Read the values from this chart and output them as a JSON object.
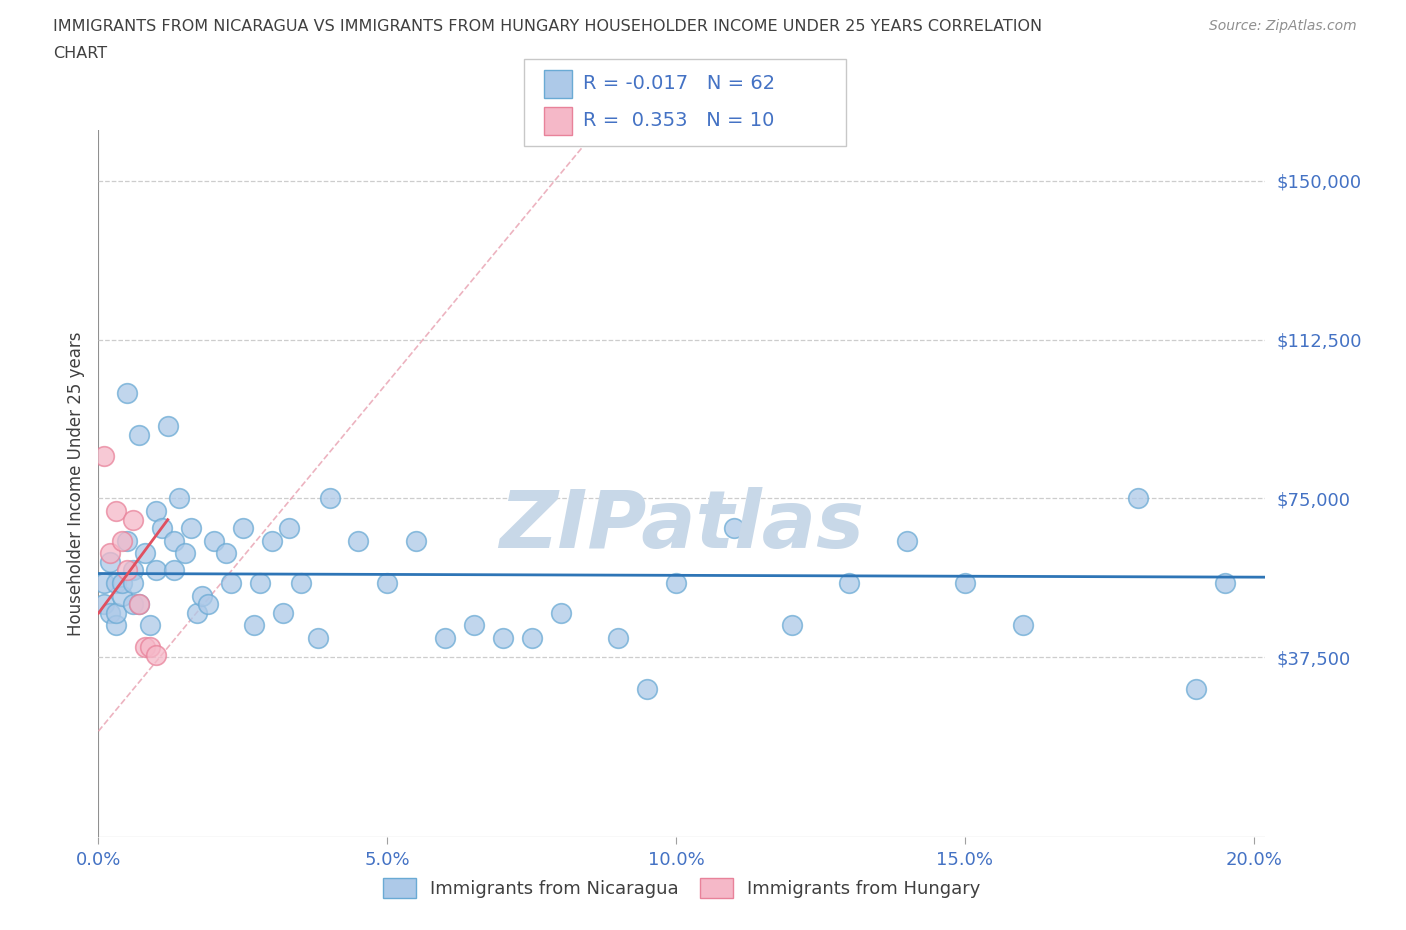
{
  "title_line1": "IMMIGRANTS FROM NICARAGUA VS IMMIGRANTS FROM HUNGARY HOUSEHOLDER INCOME UNDER 25 YEARS CORRELATION",
  "title_line2": "CHART",
  "source_text": "Source: ZipAtlas.com",
  "ylabel": "Householder Income Under 25 years",
  "xlim": [
    0.0,
    0.202
  ],
  "ylim": [
    -5000,
    162000
  ],
  "yticks_major": [
    0,
    37500,
    75000,
    112500,
    150000
  ],
  "ytick_labels_right": [
    "",
    "$37,500",
    "$75,000",
    "$112,500",
    "$150,000"
  ],
  "xticks": [
    0.0,
    0.05,
    0.1,
    0.15,
    0.2
  ],
  "xtick_labels": [
    "0.0%",
    "5.0%",
    "10.0%",
    "15.0%",
    "20.0%"
  ],
  "nicaragua_fill": "#adc9e8",
  "nicaragua_edge": "#6aaad4",
  "hungary_fill": "#f5b8c8",
  "hungary_edge": "#e8829a",
  "trend_nicaragua_color": "#2e75b6",
  "trend_hungary_color": "#e05060",
  "trend_dashed_color": "#e8a0b0",
  "R_nicaragua": -0.017,
  "N_nicaragua": 62,
  "R_hungary": 0.353,
  "N_hungary": 10,
  "watermark_text": "ZIPatlas",
  "watermark_color": "#c8d8e8",
  "background_color": "#ffffff",
  "grid_color": "#c8c8c8",
  "axis_label_color": "#4472c4",
  "title_color": "#404040",
  "source_color": "#909090",
  "legend_text_color": "#404040",
  "nicaragua_x": [
    0.001,
    0.001,
    0.002,
    0.002,
    0.003,
    0.003,
    0.003,
    0.004,
    0.004,
    0.005,
    0.005,
    0.006,
    0.006,
    0.006,
    0.007,
    0.007,
    0.008,
    0.009,
    0.01,
    0.01,
    0.011,
    0.012,
    0.013,
    0.013,
    0.014,
    0.015,
    0.016,
    0.017,
    0.018,
    0.019,
    0.02,
    0.022,
    0.023,
    0.025,
    0.027,
    0.028,
    0.03,
    0.032,
    0.033,
    0.035,
    0.038,
    0.04,
    0.045,
    0.05,
    0.055,
    0.06,
    0.065,
    0.07,
    0.075,
    0.08,
    0.09,
    0.095,
    0.1,
    0.11,
    0.12,
    0.13,
    0.14,
    0.15,
    0.16,
    0.18,
    0.19,
    0.195
  ],
  "nicaragua_y": [
    55000,
    50000,
    48000,
    60000,
    45000,
    55000,
    48000,
    52000,
    55000,
    100000,
    65000,
    58000,
    50000,
    55000,
    90000,
    50000,
    62000,
    45000,
    72000,
    58000,
    68000,
    92000,
    65000,
    58000,
    75000,
    62000,
    68000,
    48000,
    52000,
    50000,
    65000,
    62000,
    55000,
    68000,
    45000,
    55000,
    65000,
    48000,
    68000,
    55000,
    42000,
    75000,
    65000,
    55000,
    65000,
    42000,
    45000,
    42000,
    42000,
    48000,
    42000,
    30000,
    55000,
    68000,
    45000,
    55000,
    65000,
    55000,
    45000,
    75000,
    30000,
    55000
  ],
  "hungary_x": [
    0.001,
    0.002,
    0.003,
    0.004,
    0.005,
    0.006,
    0.007,
    0.008,
    0.009,
    0.01
  ],
  "hungary_y": [
    85000,
    62000,
    72000,
    65000,
    58000,
    70000,
    50000,
    40000,
    40000,
    38000
  ]
}
